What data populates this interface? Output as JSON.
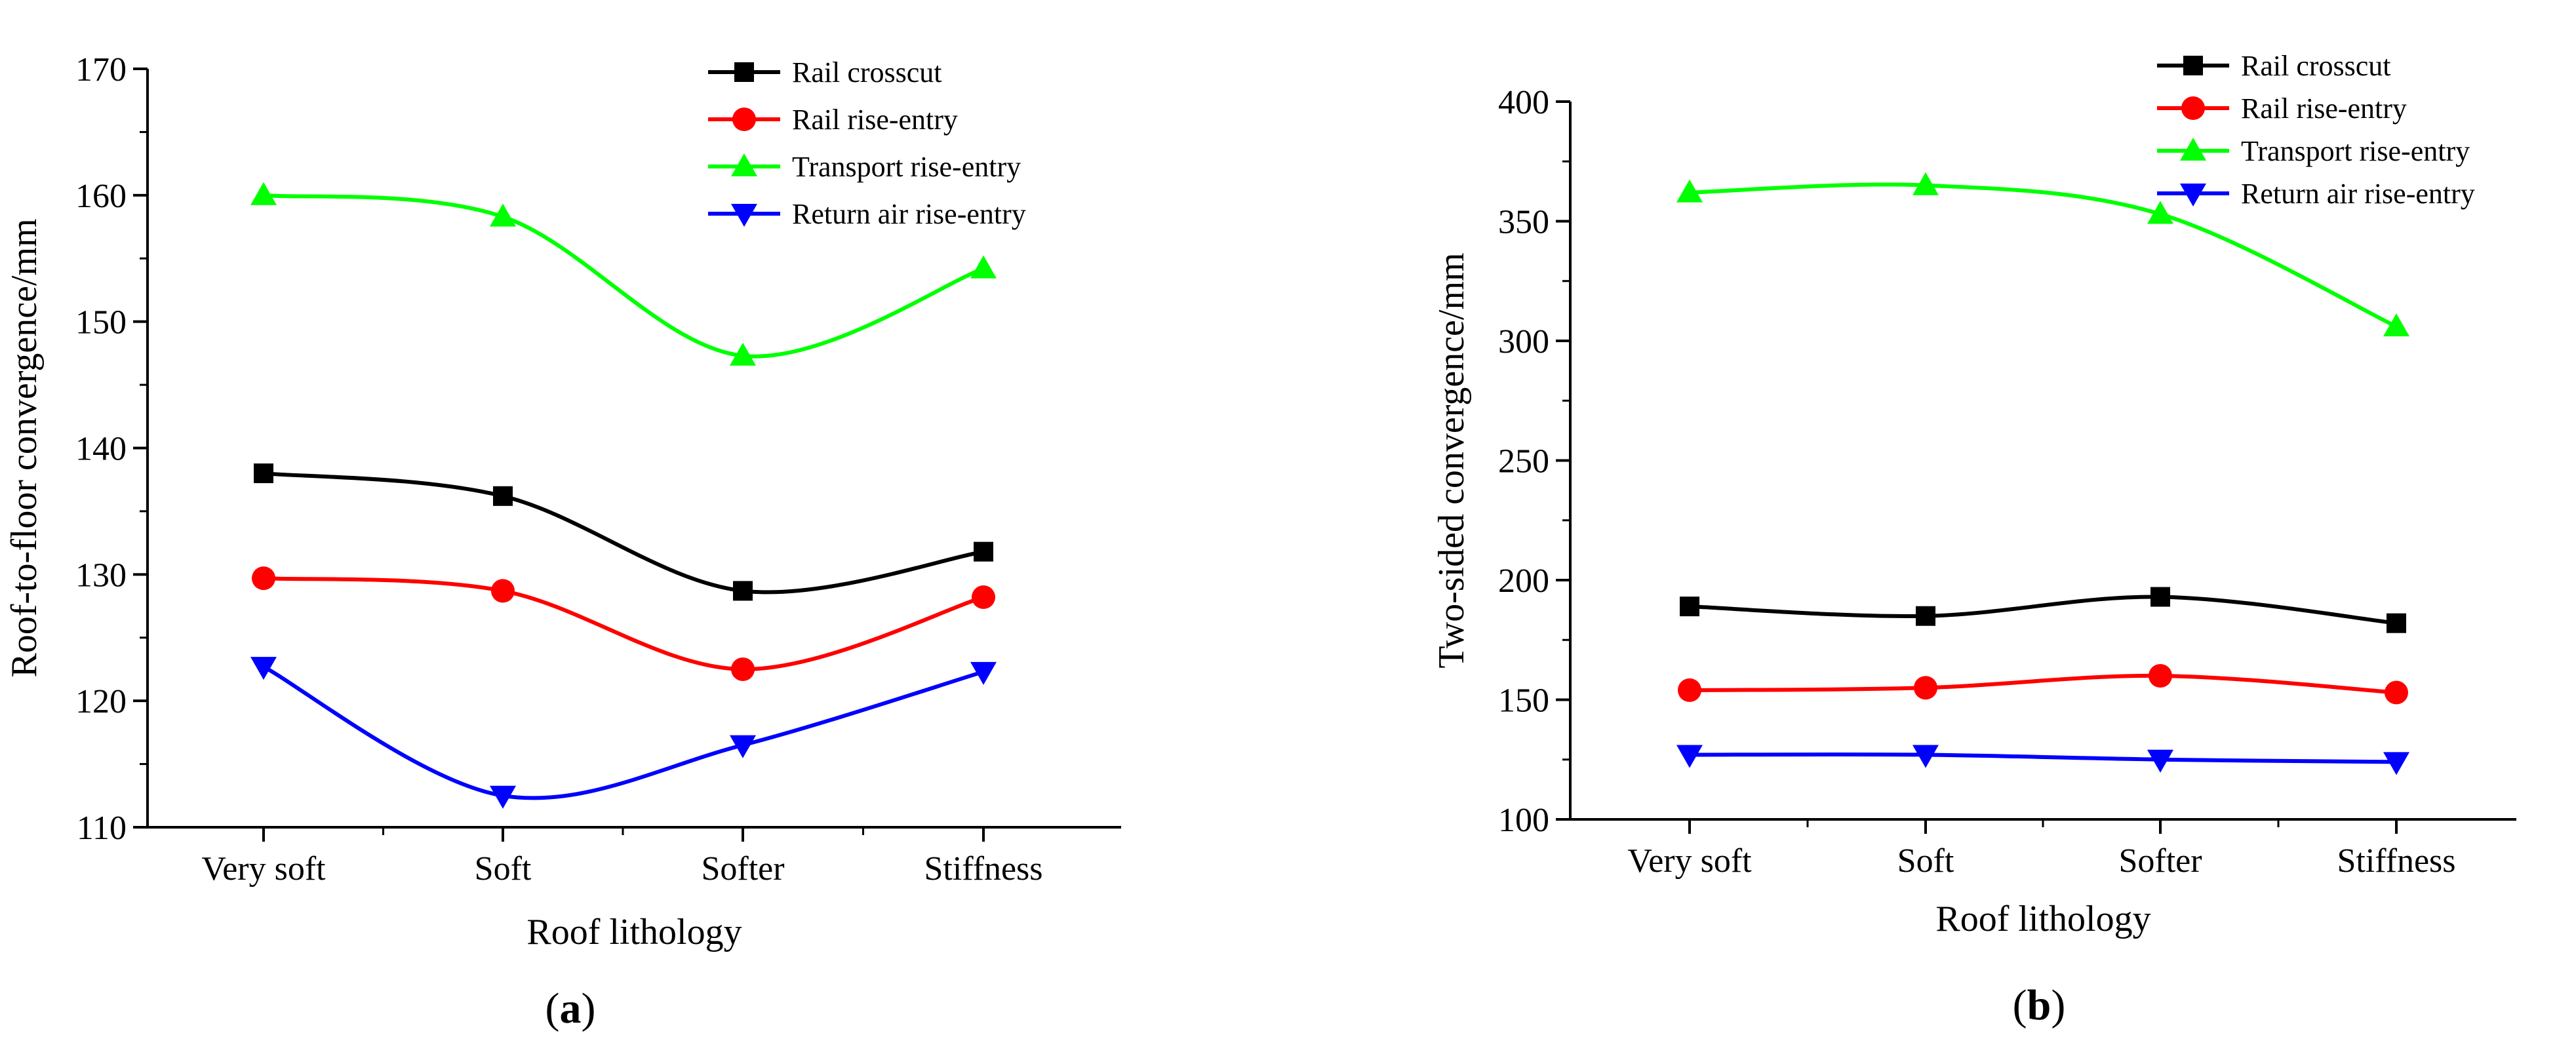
{
  "chart_data": [
    {
      "type": "line",
      "panel_label": "a",
      "categories": [
        "Very soft",
        "Soft",
        "Softer",
        "Stiffness"
      ],
      "xlabel": "Roof lithology",
      "ylabel": "Roof-to-floor convergence/mm",
      "ylim": [
        110,
        170
      ],
      "yticks": [
        110,
        120,
        130,
        140,
        150,
        160,
        170
      ],
      "series": [
        {
          "name": "Rail crosscut",
          "color": "#000000",
          "marker": "square",
          "values": [
            138,
            136.2,
            128.7,
            131.8
          ]
        },
        {
          "name": "Rail rise-entry",
          "color": "#ff0000",
          "marker": "circle",
          "values": [
            129.7,
            128.7,
            122.5,
            128.2
          ]
        },
        {
          "name": "Transport rise-entry",
          "color": "#00ff00",
          "marker": "triangle-up",
          "values": [
            160,
            158.3,
            147.3,
            154.2
          ]
        },
        {
          "name": "Return air rise-entry",
          "color": "#0000ff",
          "marker": "triangle-down",
          "values": [
            122.7,
            112.5,
            116.5,
            122.3
          ]
        }
      ]
    },
    {
      "type": "line",
      "panel_label": "b",
      "categories": [
        "Very soft",
        "Soft",
        "Softer",
        "Stiffness"
      ],
      "xlabel": "Roof lithology",
      "ylabel": "Two-sided convergence/mm",
      "ylim": [
        100,
        400
      ],
      "yticks": [
        100,
        150,
        200,
        250,
        300,
        350,
        400
      ],
      "series": [
        {
          "name": "Rail crosscut",
          "color": "#000000",
          "marker": "square",
          "values": [
            189,
            185,
            193,
            182
          ]
        },
        {
          "name": "Rail rise-entry",
          "color": "#ff0000",
          "marker": "circle",
          "values": [
            154,
            155,
            160,
            153
          ]
        },
        {
          "name": "Transport rise-entry",
          "color": "#00ff00",
          "marker": "triangle-up",
          "values": [
            362,
            365,
            353,
            306
          ]
        },
        {
          "name": "Return air rise-entry",
          "color": "#0000ff",
          "marker": "triangle-down",
          "values": [
            127,
            127,
            125,
            124
          ]
        }
      ]
    }
  ]
}
